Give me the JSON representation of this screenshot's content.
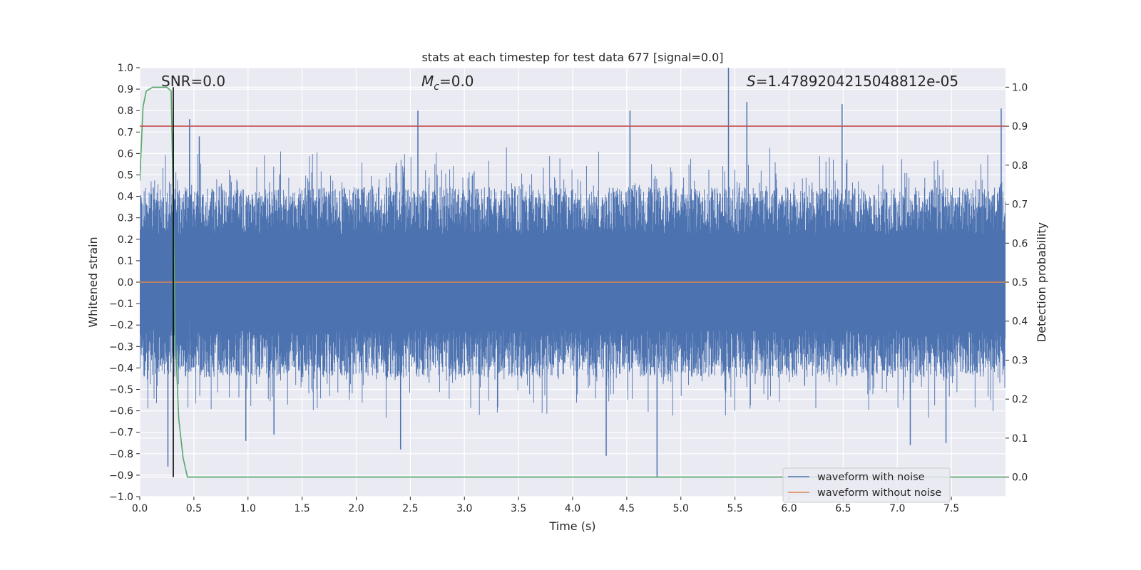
{
  "chart_data": {
    "type": "line",
    "title": "stats at each timestep for test data 677 [signal=0.0]",
    "xlabel": "Time (s)",
    "ylabel_left": "Whitened strain",
    "ylabel_right": "Detection probability",
    "xlim": [
      0.0,
      8.0
    ],
    "ylim_left": [
      -1.0,
      1.0
    ],
    "ylim_right": [
      -0.05,
      1.05
    ],
    "x_ticks": [
      0.0,
      0.5,
      1.0,
      1.5,
      2.0,
      2.5,
      3.0,
      3.5,
      4.0,
      4.5,
      5.0,
      5.5,
      6.0,
      6.5,
      7.0,
      7.5
    ],
    "x_tick_labels": [
      "0.0",
      "0.5",
      "1.0",
      "1.5",
      "2.0",
      "2.5",
      "3.0",
      "3.5",
      "4.0",
      "4.5",
      "5.0",
      "5.5",
      "6.0",
      "6.5",
      "7.0",
      "7.5"
    ],
    "y_left_ticks": [
      -1.0,
      -0.9,
      -0.8,
      -0.7,
      -0.6,
      -0.5,
      -0.4,
      -0.3,
      -0.2,
      -0.1,
      0.0,
      0.1,
      0.2,
      0.3,
      0.4,
      0.5,
      0.6,
      0.7,
      0.8,
      0.9,
      1.0
    ],
    "y_left_tick_labels": [
      "−1.0",
      "−0.9",
      "−0.8",
      "−0.7",
      "−0.6",
      "−0.5",
      "−0.4",
      "−0.3",
      "−0.2",
      "−0.1",
      "0.0",
      "0.1",
      "0.2",
      "0.3",
      "0.4",
      "0.5",
      "0.6",
      "0.7",
      "0.8",
      "0.9",
      "1.0"
    ],
    "y_right_ticks": [
      0.0,
      0.1,
      0.2,
      0.3,
      0.4,
      0.5,
      0.6,
      0.7,
      0.8,
      0.9,
      1.0
    ],
    "y_right_tick_labels": [
      "0.0",
      "0.1",
      "0.2",
      "0.3",
      "0.4",
      "0.5",
      "0.6",
      "0.7",
      "0.8",
      "0.9",
      "1.0"
    ],
    "grid": true,
    "annotations": {
      "snr": "SNR=0.0",
      "mc_symbol": "M",
      "mc_sub": "c",
      "mc_value": "=0.0",
      "s_symbol": "S",
      "s_value": "=1.4789204215048812e-05"
    },
    "legend": {
      "placement": "lower-right",
      "entries": [
        "waveform with noise",
        "waveform without noise"
      ]
    },
    "series": [
      {
        "name": "waveform with noise",
        "axis": "left",
        "color": "#4c72b0",
        "style": "dense noise band",
        "band_typical": [
          -0.3,
          0.3
        ],
        "band_core": [
          -0.18,
          0.22
        ],
        "spikes": [
          {
            "x": 0.26,
            "y": -0.86
          },
          {
            "x": 0.31,
            "y": 0.7
          },
          {
            "x": 0.46,
            "y": 0.76
          },
          {
            "x": 0.55,
            "y": 0.68
          },
          {
            "x": 0.98,
            "y": -0.74
          },
          {
            "x": 1.24,
            "y": -0.71
          },
          {
            "x": 2.41,
            "y": -0.78
          },
          {
            "x": 2.57,
            "y": 0.8
          },
          {
            "x": 4.31,
            "y": -0.81
          },
          {
            "x": 4.53,
            "y": 0.8
          },
          {
            "x": 4.78,
            "y": -0.91
          },
          {
            "x": 5.44,
            "y": 1.0
          },
          {
            "x": 5.61,
            "y": 0.84
          },
          {
            "x": 6.49,
            "y": 0.83
          },
          {
            "x": 7.12,
            "y": -0.76
          },
          {
            "x": 7.45,
            "y": -0.75
          },
          {
            "x": 7.96,
            "y": 0.81
          }
        ]
      },
      {
        "name": "waveform without noise",
        "axis": "left",
        "color": "#dd8452",
        "x": [
          0.0,
          8.0
        ],
        "y": [
          0.0,
          0.0
        ]
      },
      {
        "axis": "right",
        "color": "#55a868",
        "x": [
          0.0,
          0.03,
          0.06,
          0.12,
          0.19,
          0.25,
          0.29,
          0.31,
          0.33,
          0.36,
          0.4,
          0.44,
          8.0
        ],
        "y": [
          0.76,
          0.95,
          0.99,
          1.0,
          1.0,
          1.0,
          0.99,
          0.7,
          0.35,
          0.15,
          0.05,
          0.0,
          0.0
        ]
      },
      {
        "axis": "right",
        "color": "#c44e52",
        "x": [
          0.0,
          8.0
        ],
        "y": [
          0.9,
          0.9
        ]
      },
      {
        "axis": "right",
        "color": "#000000",
        "x": [
          0.31,
          0.31
        ],
        "y": [
          0.0,
          1.0
        ]
      }
    ]
  }
}
